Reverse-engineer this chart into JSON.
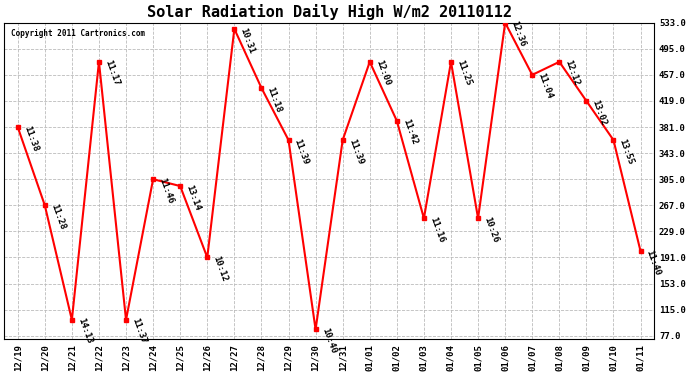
{
  "title": "Solar Radiation Daily High W/m2 20110112",
  "copyright": "Copyright 2011 Cartronics.com",
  "x_labels": [
    "12/19",
    "12/20",
    "12/21",
    "12/22",
    "12/23",
    "12/24",
    "12/25",
    "12/26",
    "12/27",
    "12/28",
    "12/29",
    "12/30",
    "12/31",
    "01/01",
    "01/02",
    "01/03",
    "01/04",
    "01/05",
    "01/06",
    "01/07",
    "01/08",
    "01/09",
    "01/10",
    "01/11"
  ],
  "y_values": [
    381,
    267,
    100,
    476,
    100,
    305,
    295,
    191,
    524,
    438,
    362,
    86,
    362,
    476,
    390,
    248,
    476,
    248,
    533,
    457,
    476,
    419,
    362,
    200
  ],
  "time_labels": [
    "11:38",
    "11:28",
    "14:13",
    "11:17",
    "11:37",
    "11:46",
    "13:14",
    "10:12",
    "10:31",
    "11:18",
    "11:39",
    "10:40",
    "11:39",
    "12:00",
    "11:42",
    "11:16",
    "11:25",
    "10:26",
    "12:36",
    "11:04",
    "12:12",
    "13:02",
    "13:55",
    "11:40"
  ],
  "y_ticks": [
    77.0,
    115.0,
    153.0,
    191.0,
    229.0,
    267.0,
    305.0,
    343.0,
    381.0,
    419.0,
    457.0,
    495.0,
    533.0
  ],
  "y_min": 77.0,
  "y_max": 533.0,
  "line_color": "red",
  "marker_color": "red",
  "bg_color": "#ffffff",
  "grid_color": "#bbbbbb",
  "title_fontsize": 11,
  "tick_fontsize": 6.5,
  "annot_fontsize": 6.5
}
